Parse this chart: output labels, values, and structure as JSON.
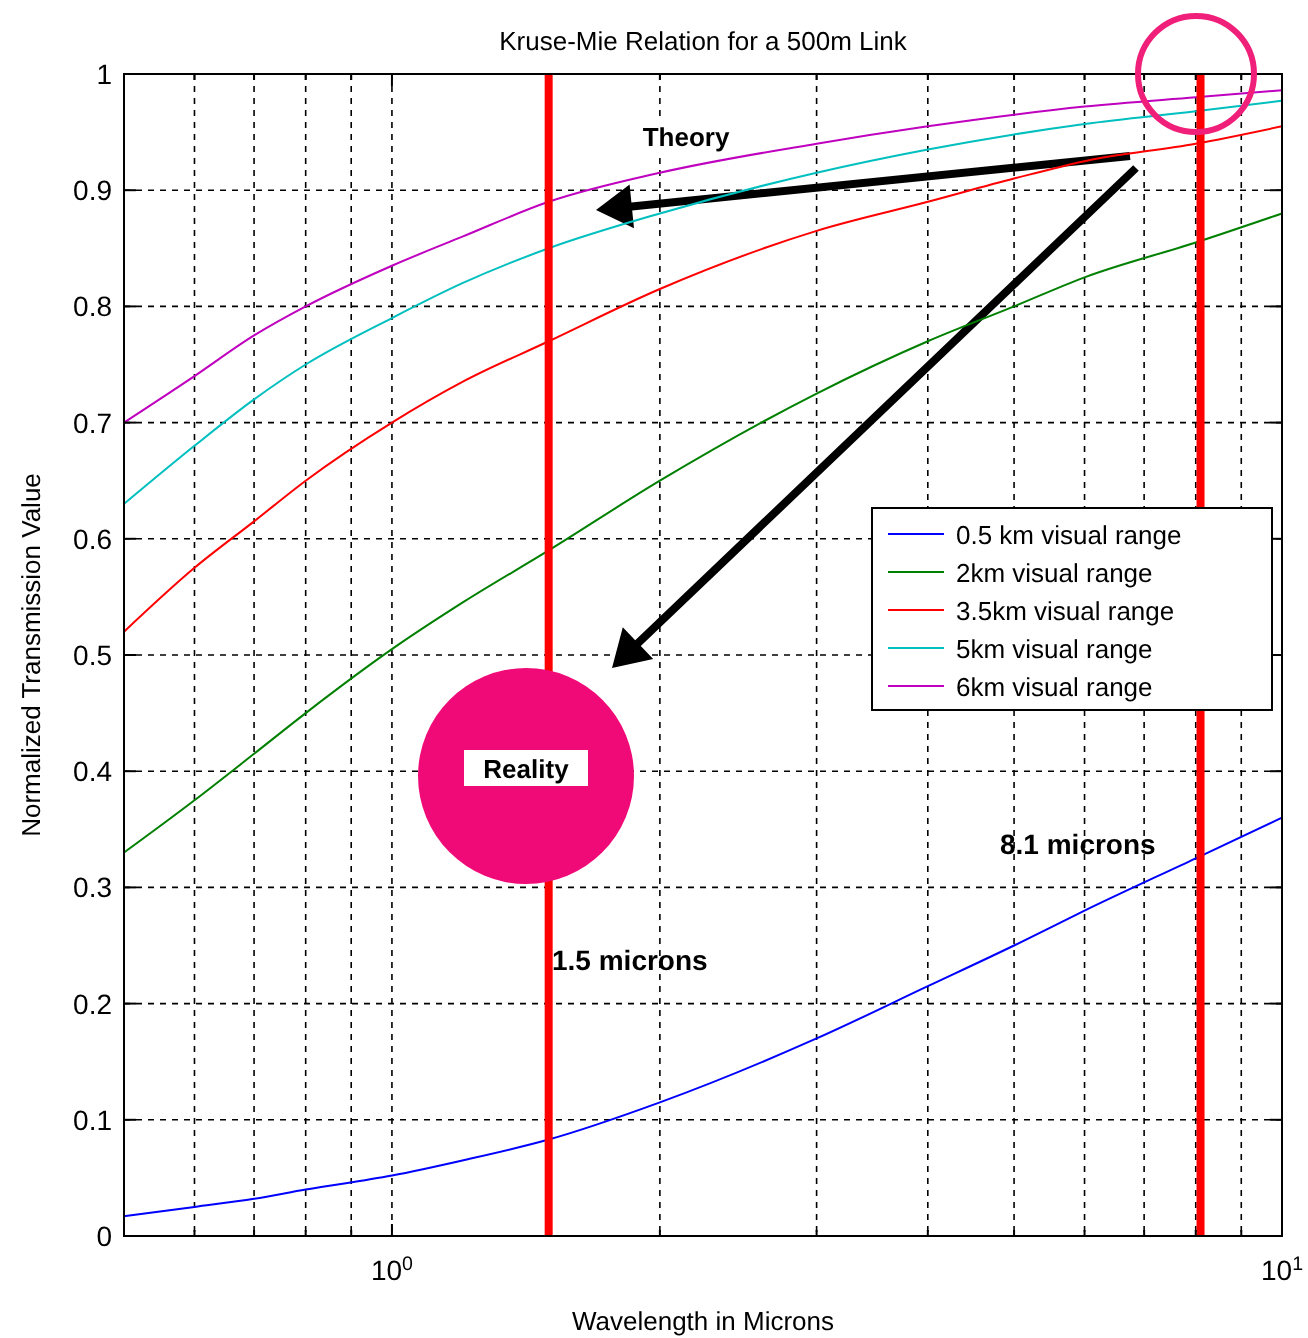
{
  "chart_data": {
    "type": "line",
    "title": "Kruse-Mie Relation for a 500m Link",
    "xlabel": "Wavelength in Microns",
    "ylabel": "Normalized Transmission Value",
    "x": [
      0.5,
      0.6,
      0.7,
      0.8,
      1,
      1.2,
      1.5,
      2,
      3,
      4,
      5,
      6,
      8,
      10
    ],
    "series": [
      {
        "name": "0.5 km visual range",
        "color": "#0000ff",
        "values": [
          0.017,
          0.025,
          0.032,
          0.04,
          0.052,
          0.065,
          0.083,
          0.115,
          0.17,
          0.215,
          0.25,
          0.28,
          0.325,
          0.36
        ]
      },
      {
        "name": "2km visual range",
        "color": "#008000",
        "values": [
          0.33,
          0.375,
          0.415,
          0.45,
          0.505,
          0.545,
          0.59,
          0.65,
          0.725,
          0.77,
          0.8,
          0.825,
          0.855,
          0.88
        ]
      },
      {
        "name": "3.5km visual range",
        "color": "#ff0000",
        "values": [
          0.52,
          0.575,
          0.615,
          0.65,
          0.7,
          0.735,
          0.77,
          0.815,
          0.865,
          0.89,
          0.91,
          0.925,
          0.94,
          0.955
        ]
      },
      {
        "name": "5km visual range",
        "color": "#00bfbf",
        "values": [
          0.63,
          0.68,
          0.72,
          0.75,
          0.79,
          0.82,
          0.85,
          0.88,
          0.915,
          0.935,
          0.948,
          0.957,
          0.968,
          0.977
        ]
      },
      {
        "name": "6km visual range",
        "color": "#bf00bf",
        "values": [
          0.7,
          0.74,
          0.775,
          0.8,
          0.835,
          0.86,
          0.89,
          0.915,
          0.94,
          0.955,
          0.965,
          0.972,
          0.98,
          0.986
        ]
      }
    ],
    "log": "x",
    "xlim": [
      0.5,
      10
    ],
    "xticks": [
      {
        "value": 0.6,
        "label": null
      },
      {
        "value": 0.7,
        "label": null
      },
      {
        "value": 0.8,
        "label": null
      },
      {
        "value": 0.9,
        "label": null
      },
      {
        "value": 1,
        "label": "10$^{0}$"
      },
      {
        "value": 2,
        "label": null
      },
      {
        "value": 3,
        "label": null
      },
      {
        "value": 4,
        "label": null
      },
      {
        "value": 5,
        "label": null
      },
      {
        "value": 6,
        "label": null
      },
      {
        "value": 7,
        "label": null
      },
      {
        "value": 8,
        "label": null
      },
      {
        "value": 9,
        "label": null
      },
      {
        "value": 10,
        "label": "10$^{1}$"
      }
    ],
    "ylim": [
      0,
      1
    ],
    "yticks": [
      0,
      0.1,
      0.2,
      0.3,
      0.4,
      0.5,
      0.6,
      0.7,
      0.8,
      0.9,
      1
    ],
    "grid": true,
    "legend": "right",
    "line_style": "solid",
    "marker": "none",
    "ref_lines": [
      {
        "axis": "x",
        "value": 1.5,
        "label": "1.5 microns",
        "color": "#ff0000"
      },
      {
        "axis": "x",
        "value": 8.1,
        "label": "8.1 microns",
        "color": "#ff0000"
      }
    ],
    "annotations": [
      "Theory",
      "Reality"
    ]
  }
}
